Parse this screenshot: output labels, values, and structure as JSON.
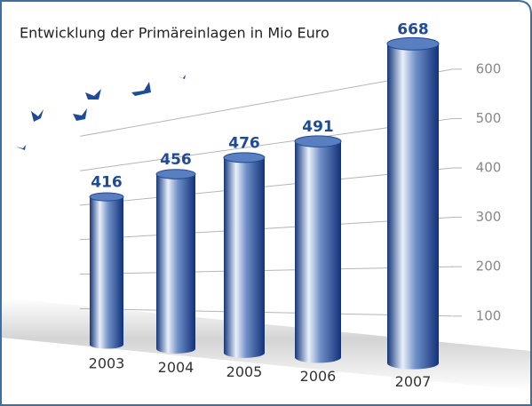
{
  "chart_data": {
    "type": "bar",
    "title": "Entwicklung der Primäreinlagen in Mio Euro",
    "categories": [
      "2003",
      "2004",
      "2005",
      "2006",
      "2007"
    ],
    "values": [
      416,
      456,
      476,
      491,
      668
    ],
    "color": "#1f4a96",
    "ylim": [
      0,
      700
    ],
    "yticks": [
      100,
      200,
      300,
      400,
      500,
      600
    ],
    "grid": true
  }
}
